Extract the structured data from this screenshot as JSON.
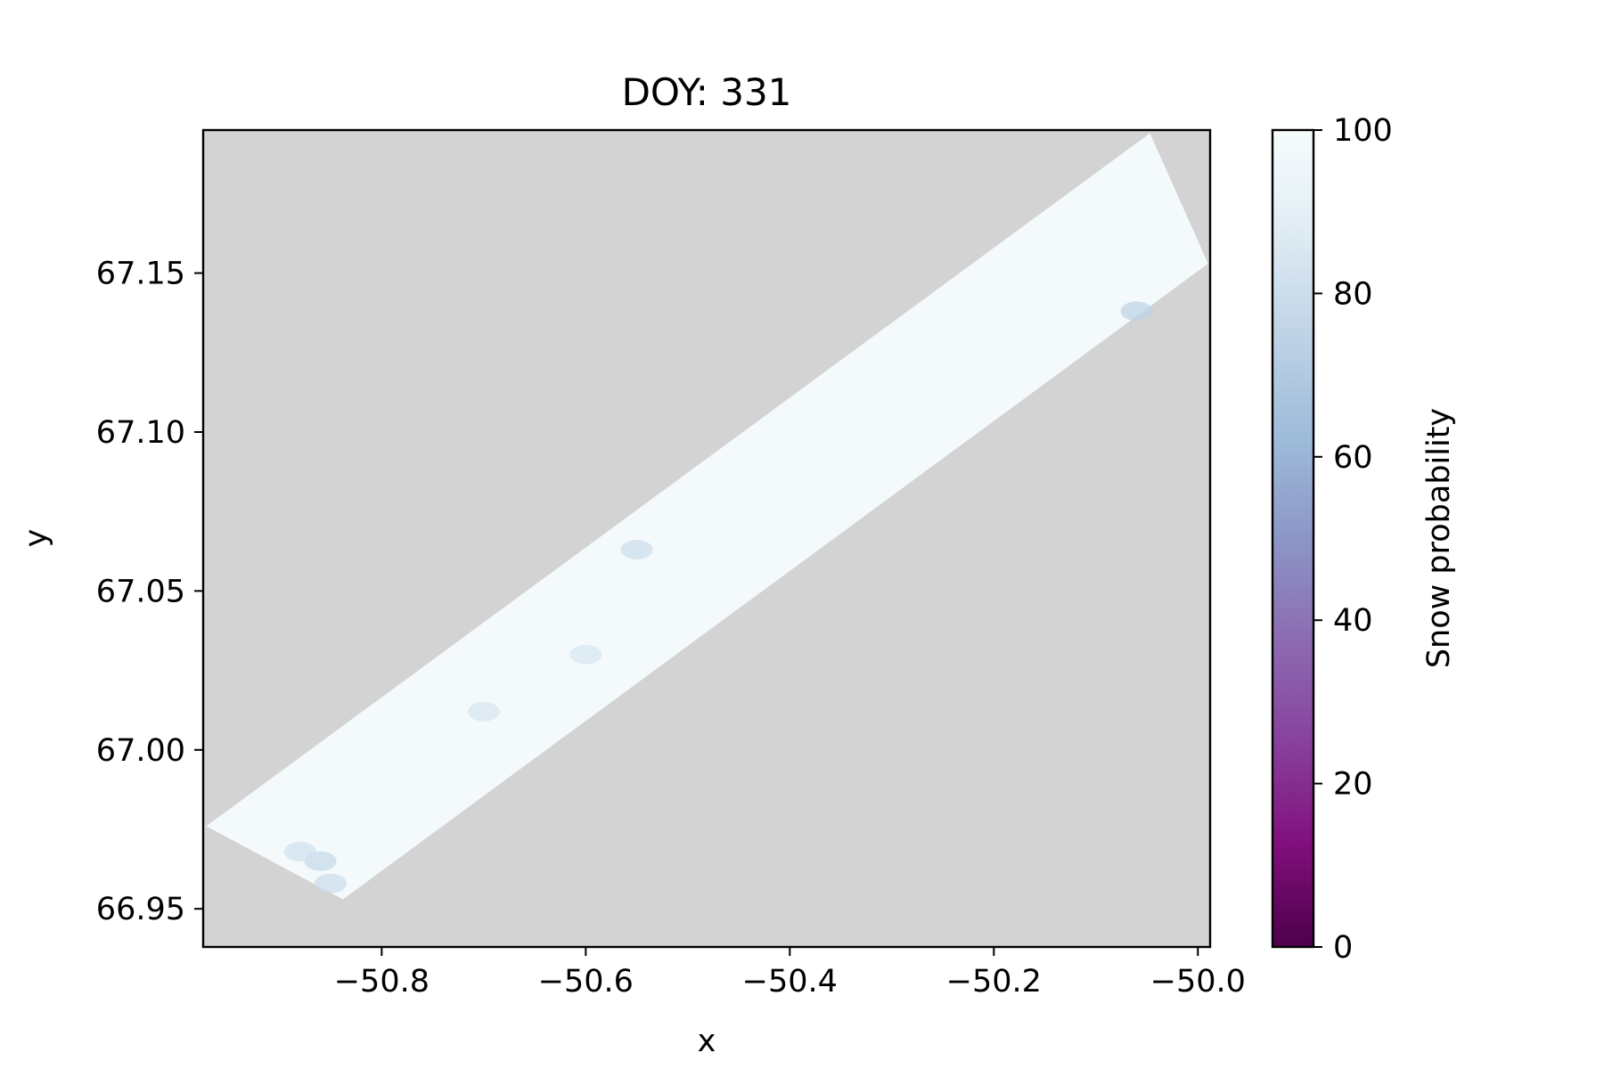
{
  "chart_data": {
    "type": "heatmap",
    "title": "DOY: 331",
    "xlabel": "x",
    "ylabel": "y",
    "xlim": [
      -50.975,
      -49.988
    ],
    "ylim": [
      66.938,
      67.195
    ],
    "x_ticks": [
      -50.8,
      -50.6,
      -50.4,
      -50.2,
      -50.0
    ],
    "x_tick_labels": [
      "−50.8",
      "−50.6",
      "−50.4",
      "−50.2",
      "−50.0"
    ],
    "y_ticks": [
      66.95,
      67.0,
      67.05,
      67.1,
      67.15
    ],
    "y_tick_labels": [
      "66.95",
      "67.00",
      "67.05",
      "67.10",
      "67.15"
    ],
    "background_color": "#d3d3d3",
    "grid": false,
    "swath": {
      "description": "rotated satellite swath footprint",
      "corners": [
        {
          "x": -50.972,
          "y": 66.976
        },
        {
          "x": -50.047,
          "y": 67.194
        },
        {
          "x": -49.99,
          "y": 67.153
        },
        {
          "x": -50.838,
          "y": 66.953
        }
      ],
      "dominant_value": 97,
      "fill_color": "#f4fafc"
    },
    "patches": [
      {
        "x": -50.86,
        "y": 66.965,
        "value": 78
      },
      {
        "x": -50.88,
        "y": 66.968,
        "value": 82
      },
      {
        "x": -50.85,
        "y": 66.958,
        "value": 80
      },
      {
        "x": -50.6,
        "y": 67.03,
        "value": 85
      },
      {
        "x": -50.7,
        "y": 67.012,
        "value": 85
      },
      {
        "x": -50.55,
        "y": 67.063,
        "value": 80
      },
      {
        "x": -50.06,
        "y": 67.138,
        "value": 75
      }
    ],
    "colorbar": {
      "label": "Snow probability",
      "colormap": "BuPu_r",
      "min": 0,
      "max": 100,
      "ticks": [
        0,
        20,
        40,
        60,
        80,
        100
      ],
      "tick_labels": [
        "0",
        "20",
        "40",
        "60",
        "80",
        "100"
      ],
      "stops": [
        {
          "value": 0,
          "color": "#4d004b"
        },
        {
          "value": 12.5,
          "color": "#810f7c"
        },
        {
          "value": 25,
          "color": "#88419d"
        },
        {
          "value": 37.5,
          "color": "#8c6bb1"
        },
        {
          "value": 50,
          "color": "#8c96c6"
        },
        {
          "value": 62.5,
          "color": "#9ebcda"
        },
        {
          "value": 75,
          "color": "#bfd3e6"
        },
        {
          "value": 87.5,
          "color": "#e0ecf4"
        },
        {
          "value": 100,
          "color": "#f7fcfd"
        }
      ]
    }
  }
}
